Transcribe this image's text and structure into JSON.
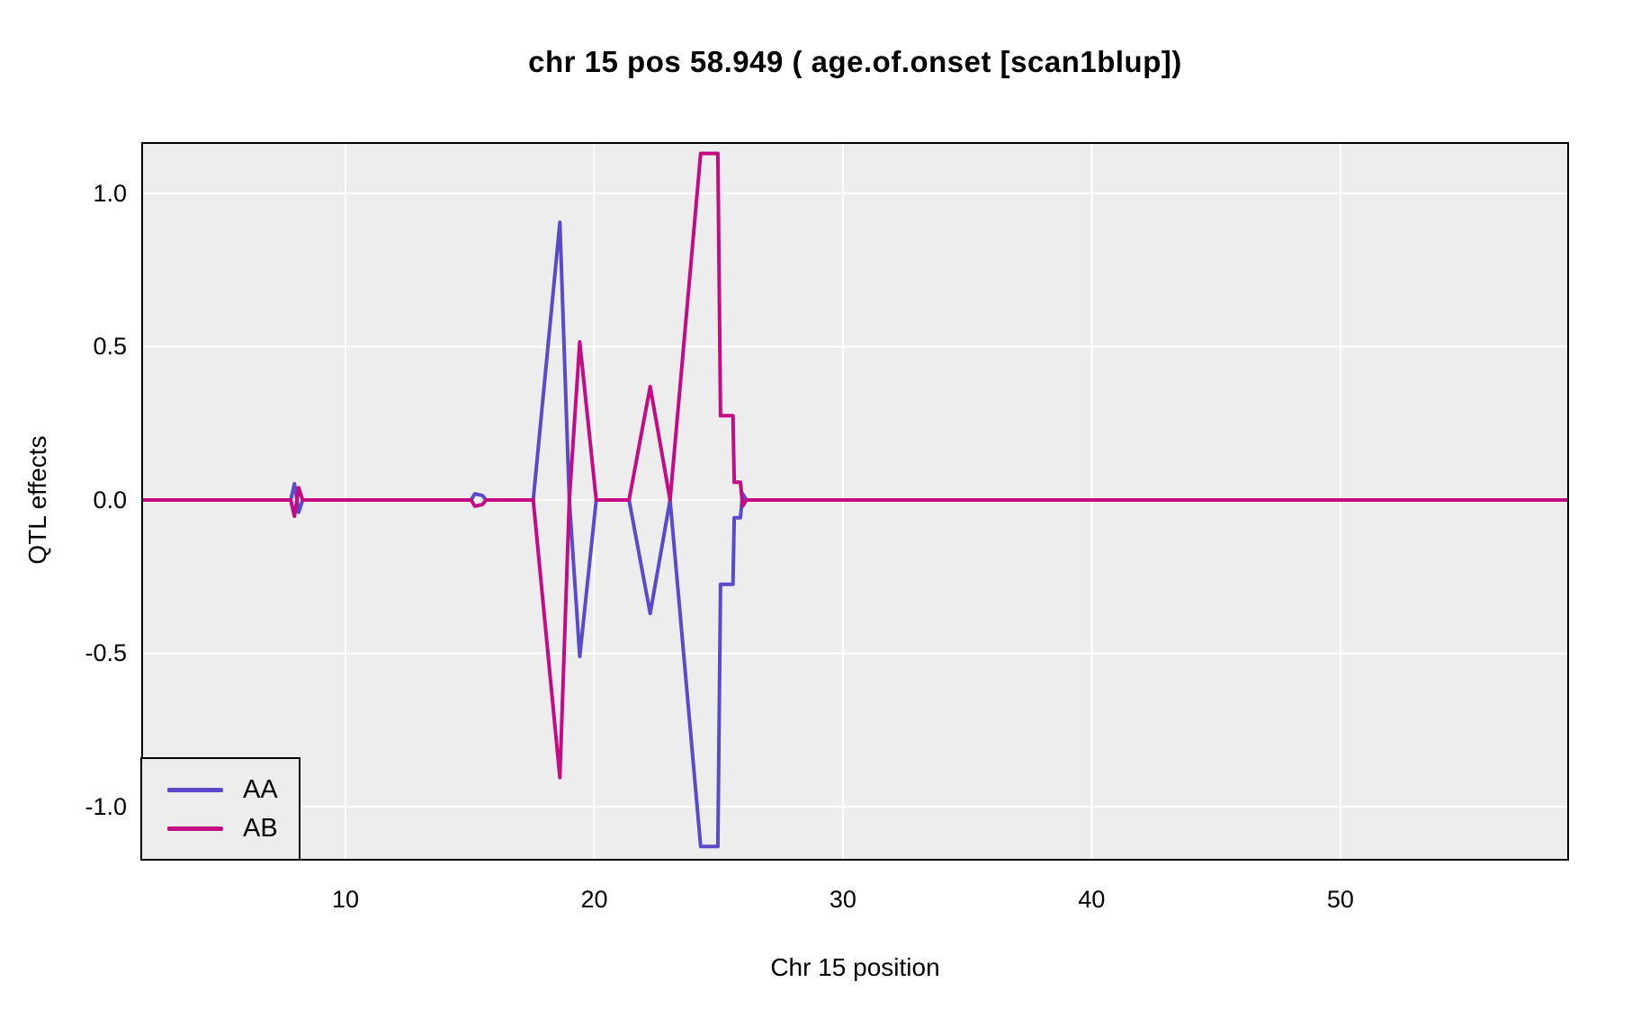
{
  "title": "chr 15 pos 58.949 ( age.of.onset  [scan1blup])",
  "chart_data": {
    "type": "line",
    "title": "chr 15 pos 58.949 ( age.of.onset  [scan1blup])",
    "xlabel": "Chr 15 position",
    "ylabel": "QTL effects",
    "xlim": [
      1.79,
      59.19
    ],
    "ylim": [
      -1.176,
      1.167
    ],
    "xticks": [
      10,
      20,
      30,
      40,
      50
    ],
    "xtick_labels": [
      "10",
      "20",
      "30",
      "40",
      "50"
    ],
    "yticks": [
      1.0,
      0.5,
      0.0,
      -0.5,
      -1.0
    ],
    "ytick_labels": [
      "1.0",
      "0.5",
      "0.0",
      "-0.5",
      "-1.0"
    ],
    "grid": true,
    "panel_background": "#EDEDED",
    "grid_color": "#FFFFFF",
    "frame_color": "#000000",
    "legend_position": "bottom-left",
    "x": [
      1.79,
      7.8,
      7.95,
      8.05,
      8.12,
      8.28,
      15.05,
      15.2,
      15.5,
      15.65,
      17.55,
      18.62,
      19.0,
      19.42,
      20.08,
      21.4,
      22.25,
      23.05,
      24.28,
      24.97,
      25.08,
      25.58,
      25.63,
      25.88,
      25.97,
      26.12,
      59.19
    ],
    "series": [
      {
        "name": "AA",
        "color": "#5A49C8",
        "values": [
          0,
          0,
          0.053,
          0,
          -0.04,
          0,
          0,
          0.02,
          0.015,
          0,
          0,
          0.905,
          0,
          -0.51,
          0,
          0,
          -0.37,
          0,
          -1.13,
          -1.13,
          -0.275,
          -0.275,
          -0.058,
          -0.058,
          0.02,
          0,
          0
        ]
      },
      {
        "name": "AB",
        "color": "#C30B84",
        "values": [
          0,
          0,
          -0.053,
          0,
          0.04,
          0,
          0,
          -0.02,
          -0.015,
          0,
          0,
          -0.905,
          0,
          0.515,
          0,
          0,
          0.37,
          0,
          1.13,
          1.13,
          0.275,
          0.275,
          0.058,
          0.058,
          -0.02,
          0,
          0
        ]
      }
    ]
  }
}
